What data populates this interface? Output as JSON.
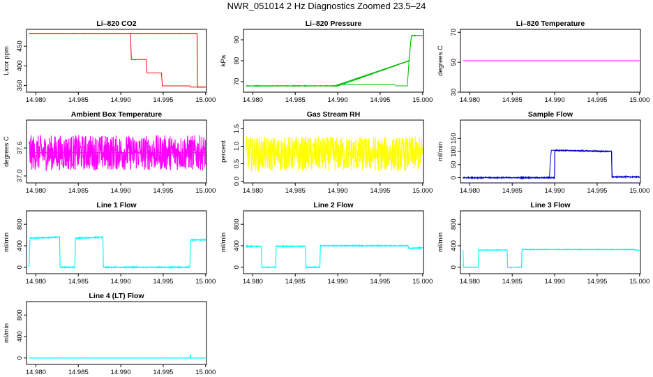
{
  "page_title": "NWR_051014  2 Hz Diagnostics Zoomed 23.5–24",
  "chart_data": [
    {
      "type": "line",
      "title": "Li–820 CO2",
      "ylabel": "Licor ppm",
      "xlim": [
        14.9789,
        15.0001
      ],
      "ylim": [
        333,
        493
      ],
      "yticks": [
        350,
        400,
        450
      ],
      "xticks": [
        14.98,
        14.985,
        14.99,
        14.995,
        15.0
      ],
      "color": "#ff0000",
      "noise": 0.4,
      "x": [
        14.9792,
        14.999,
        14.99115,
        14.99125,
        14.993,
        14.9931,
        14.9948,
        14.9949,
        14.99815,
        14.9982,
        15.0
      ],
      "values": [
        482,
        482,
        482,
        416,
        416,
        382,
        382,
        349,
        349,
        346,
        346
      ]
    },
    {
      "type": "line",
      "title": "Li–820 Pressure",
      "ylabel": "kPa",
      "xlim": [
        14.9789,
        15.0001
      ],
      "ylim": [
        65,
        95
      ],
      "yticks": [
        70,
        80,
        90
      ],
      "xticks": [
        14.98,
        14.985,
        14.99,
        14.995,
        15.0
      ],
      "color": "#00bb00",
      "noise": 0.15,
      "x": [
        14.9792,
        14.99,
        14.9984,
        14.9896,
        14.99,
        14.9967,
        14.9969,
        14.9982,
        14.9984,
        14.9986,
        14.9987,
        15.0
      ],
      "values": [
        68,
        68,
        80,
        68,
        68.6,
        68.6,
        68,
        68,
        80,
        89,
        92,
        92
      ]
    },
    {
      "type": "line",
      "title": "Li–820 Temperature",
      "ylabel": "degrees C",
      "xlim": [
        14.9789,
        15.0001
      ],
      "ylim": [
        30,
        72
      ],
      "yticks": [
        30,
        50,
        70
      ],
      "xticks": [
        14.98,
        14.985,
        14.99,
        14.995,
        15.0
      ],
      "color": "#ff00ff",
      "noise": 0,
      "x": [
        14.9792,
        15.0
      ],
      "values": [
        51,
        51
      ]
    },
    {
      "type": "line",
      "title": "Ambient Box Temperature",
      "ylabel": "degrees C",
      "xlim": [
        14.9789,
        15.0001
      ],
      "ylim": [
        36.85,
        38.2
      ],
      "yticks": [
        37.0,
        37.6
      ],
      "xticks": [
        14.98,
        14.985,
        14.99,
        14.995,
        15.0
      ],
      "color": "#ff00ff",
      "noise": 0.38,
      "x": [
        14.9792,
        15.0
      ],
      "values": [
        37.5,
        37.5
      ]
    },
    {
      "type": "line",
      "title": "Gas Stream RH",
      "ylabel": "percent",
      "xlim": [
        14.9789,
        15.0001
      ],
      "ylim": [
        -0.05,
        1.75
      ],
      "yticks": [
        0.0,
        0.5,
        1.0,
        1.5
      ],
      "xticks": [
        14.98,
        14.985,
        14.99,
        14.995,
        15.0
      ],
      "color": "#ffff00",
      "noise": 0.5,
      "x": [
        14.9792,
        15.0
      ],
      "values": [
        0.78,
        0.78
      ]
    },
    {
      "type": "line",
      "title": "Sample Flow",
      "ylabel": "ml/min",
      "xlim": [
        14.9789,
        15.0001
      ],
      "ylim": [
        -20,
        220
      ],
      "yticks": [
        0,
        50,
        100,
        150
      ],
      "xticks": [
        14.98,
        14.985,
        14.99,
        14.995,
        15.0
      ],
      "color": "#0000cc",
      "noise": 2,
      "x": [
        14.9792,
        14.99,
        14.99,
        14.9894,
        14.9894,
        14.98945,
        14.9896,
        14.9967,
        14.99675,
        15.0
      ],
      "values": [
        0,
        0,
        0,
        0,
        5,
        45,
        105,
        100,
        3,
        3
      ]
    },
    {
      "type": "line",
      "title": "Line 1 Flow",
      "ylabel": "ml/min",
      "xlim": [
        14.9789,
        15.0001
      ],
      "ylim": [
        -120,
        1050
      ],
      "yticks": [
        0,
        400,
        800
      ],
      "xticks": [
        14.98,
        14.985,
        14.99,
        14.995,
        15.0
      ],
      "color": "#00ffff",
      "noise": 10,
      "x": [
        14.9792,
        14.9793,
        14.9828,
        14.98285,
        14.9846,
        14.98465,
        14.9879,
        14.98795,
        14.99815,
        14.9982,
        14.9983,
        15.0
      ],
      "values": [
        0,
        540,
        560,
        0,
        0,
        540,
        560,
        0,
        0,
        480,
        510,
        510
      ]
    },
    {
      "type": "line",
      "title": "Line 2 Flow",
      "ylabel": "ml/min",
      "xlim": [
        14.9789,
        15.0001
      ],
      "ylim": [
        -120,
        1050
      ],
      "yticks": [
        0,
        400,
        800
      ],
      "xticks": [
        14.98,
        14.985,
        14.99,
        14.995,
        15.0
      ],
      "color": "#00ffff",
      "noise": 9,
      "x": [
        14.9792,
        14.981,
        14.98105,
        14.9827,
        14.98275,
        14.9862,
        14.98625,
        14.9879,
        14.98795,
        14.9983,
        14.99835,
        15.0
      ],
      "values": [
        390,
        390,
        0,
        0,
        390,
        390,
        0,
        0,
        400,
        400,
        350,
        360
      ]
    },
    {
      "type": "line",
      "title": "Line 3 Flow",
      "ylabel": "ml/min",
      "xlim": [
        14.9789,
        15.0001
      ],
      "ylim": [
        -120,
        1050
      ],
      "yticks": [
        0,
        400,
        800
      ],
      "xticks": [
        14.98,
        14.985,
        14.99,
        14.995,
        15.0
      ],
      "color": "#00ffff",
      "noise": 5,
      "x": [
        14.9792,
        14.97925,
        14.981,
        14.98105,
        14.9844,
        14.98445,
        14.9861,
        14.98615,
        14.9993,
        15.0
      ],
      "values": [
        320,
        0,
        0,
        320,
        320,
        0,
        0,
        330,
        330,
        310
      ]
    },
    {
      "type": "line",
      "title": "Line 4 (LT) Flow",
      "ylabel": "ml/min",
      "xlim": [
        14.9789,
        15.0001
      ],
      "ylim": [
        -120,
        1050
      ],
      "yticks": [
        0,
        400,
        800
      ],
      "xticks": [
        14.98,
        14.985,
        14.99,
        14.995,
        15.0
      ],
      "color": "#00ffff",
      "noise": 2,
      "x": [
        14.9792,
        14.99818,
        14.9982,
        14.99825,
        15.0
      ],
      "values": [
        0,
        0,
        60,
        0,
        0
      ]
    }
  ]
}
